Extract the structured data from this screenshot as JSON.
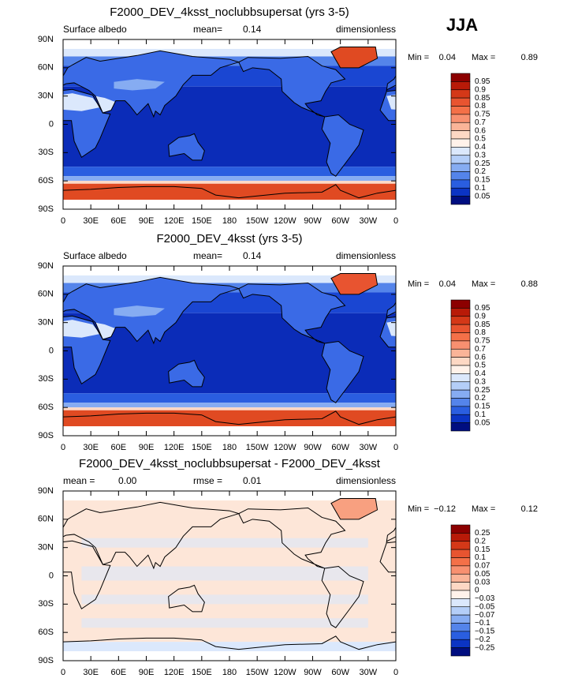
{
  "season": "JJA",
  "lat_ticks": [
    "90N",
    "60N",
    "30N",
    "0",
    "30S",
    "60S",
    "90S"
  ],
  "lon_ticks": [
    "0",
    "30E",
    "60E",
    "90E",
    "120E",
    "150E",
    "180",
    "150W",
    "120W",
    "90W",
    "60W",
    "30W",
    "0"
  ],
  "panels": [
    {
      "title": "F2000_DEV_4ksst_noclubbsupersat (yrs 3-5)",
      "left_label": "Surface albedo",
      "center_label": "mean=",
      "center_value": "0.14",
      "right": "dimensionless",
      "min_label": "Min =",
      "min": "0.04",
      "max_label": "Max =",
      "max": "0.89",
      "levels": [
        "0.95",
        "0.9",
        "0.85",
        "0.8",
        "0.75",
        "0.7",
        "0.6",
        "0.5",
        "0.4",
        "0.3",
        "0.25",
        "0.2",
        "0.15",
        "0.1",
        "0.05"
      ]
    },
    {
      "title": "F2000_DEV_4ksst (yrs 3-5)",
      "left_label": "Surface albedo",
      "center_label": "mean=",
      "center_value": "0.14",
      "right": "dimensionless",
      "min_label": "Min =",
      "min": "0.04",
      "max_label": "Max =",
      "max": "0.88",
      "levels": [
        "0.95",
        "0.9",
        "0.85",
        "0.8",
        "0.75",
        "0.7",
        "0.6",
        "0.5",
        "0.4",
        "0.3",
        "0.25",
        "0.2",
        "0.15",
        "0.1",
        "0.05"
      ]
    },
    {
      "title": "F2000_DEV_4ksst_noclubbsupersat - F2000_DEV_4ksst",
      "left_label": "mean =",
      "left_value": "0.00",
      "center_label": "rmse =",
      "center_value": "0.01",
      "right": "dimensionless",
      "min_label": "Min =",
      "min": "−0.12",
      "max_label": "Max =",
      "max": "0.12",
      "levels": [
        "0.25",
        "0.2",
        "0.15",
        "0.1",
        "0.07",
        "0.05",
        "0.03",
        "0",
        "−0.03",
        "−0.05",
        "−0.07",
        "−0.1",
        "−0.15",
        "−0.2",
        "−0.25"
      ]
    }
  ]
}
